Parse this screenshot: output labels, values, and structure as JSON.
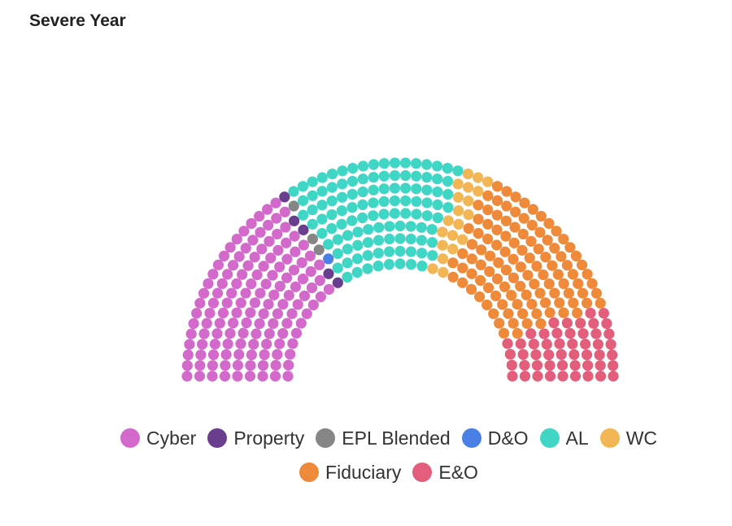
{
  "chart_data": {
    "type": "parliament",
    "title": "Severe Year",
    "series": [
      {
        "name": "Cyber",
        "value": 135,
        "color": "#D36ACB"
      },
      {
        "name": "Property",
        "value": 5,
        "color": "#6A3E8E"
      },
      {
        "name": "EPL Blended",
        "value": 3,
        "color": "#868686"
      },
      {
        "name": "D&O",
        "value": 1,
        "color": "#4A80E6"
      },
      {
        "name": "AL",
        "value": 112,
        "color": "#3FD6C6"
      },
      {
        "name": "WC",
        "value": 20,
        "color": "#F2B654"
      },
      {
        "name": "Fiduciary",
        "value": 110,
        "color": "#EE8A3A"
      },
      {
        "name": "E&O",
        "value": 50,
        "color": "#E25E7A"
      }
    ],
    "legend": {
      "rows": [
        [
          "Cyber",
          "Property",
          "EPL Blended",
          "D&O",
          "AL",
          "WC"
        ],
        [
          "Fiduciary",
          "E&O"
        ]
      ]
    }
  }
}
